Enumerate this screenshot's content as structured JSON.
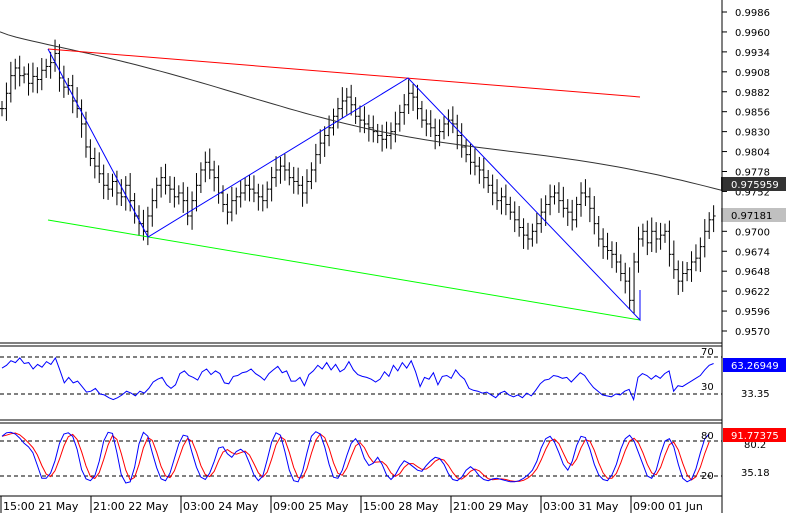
{
  "chart_data": [
    {
      "type": "ohlc",
      "panel": "price",
      "title": "",
      "y_ticks": [
        "0.9986",
        "0.9960",
        "0.9934",
        "0.9908",
        "0.9882",
        "0.9856",
        "0.9830",
        "0.9804",
        "0.9778",
        "0.9752",
        "0.9726",
        "0.9700",
        "0.9674",
        "0.9648",
        "0.9622",
        "0.9596",
        "0.9570"
      ],
      "ylim": [
        0.9553,
        1.0
      ],
      "current_price_label": "0.97181",
      "moving_average_label": "0.975959",
      "colors": {
        "bars": "#000000",
        "moving_average": "#333333",
        "resistance": "#ff0000",
        "support": "#00ff00",
        "zigzag": "#0000ff",
        "ma_box": "#333333",
        "price_box": "#c0c0c0"
      },
      "closes": [
        0.986,
        0.988,
        0.9903,
        0.9913,
        0.9903,
        0.9905,
        0.9893,
        0.9902,
        0.9898,
        0.991,
        0.9915,
        0.992,
        0.9932,
        0.99,
        0.9888,
        0.989,
        0.987,
        0.986,
        0.984,
        0.981,
        0.9795,
        0.9785,
        0.9775,
        0.976,
        0.9755,
        0.9765,
        0.975,
        0.9745,
        0.976,
        0.974,
        0.972,
        0.971,
        0.97,
        0.972,
        0.974,
        0.976,
        0.977,
        0.976,
        0.9755,
        0.9745,
        0.975,
        0.974,
        0.972,
        0.974,
        0.976,
        0.978,
        0.979,
        0.978,
        0.977,
        0.975,
        0.9735,
        0.9725,
        0.974,
        0.9745,
        0.975,
        0.976,
        0.9755,
        0.975,
        0.9745,
        0.974,
        0.9755,
        0.977,
        0.978,
        0.9785,
        0.978,
        0.977,
        0.9765,
        0.976,
        0.975,
        0.9765,
        0.978,
        0.98,
        0.9815,
        0.9825,
        0.9835,
        0.985,
        0.986,
        0.987,
        0.9875,
        0.9865,
        0.985,
        0.9845,
        0.984,
        0.9835,
        0.983,
        0.9825,
        0.982,
        0.9825,
        0.983,
        0.984,
        0.9855,
        0.9865,
        0.988,
        0.9875,
        0.986,
        0.9845,
        0.984,
        0.9835,
        0.9825,
        0.983,
        0.984,
        0.9845,
        0.984,
        0.9825,
        0.981,
        0.98,
        0.979,
        0.9785,
        0.978,
        0.977,
        0.976,
        0.975,
        0.974,
        0.9745,
        0.9735,
        0.9725,
        0.9715,
        0.9705,
        0.9695,
        0.969,
        0.97,
        0.971,
        0.9725,
        0.9735,
        0.9745,
        0.975,
        0.974,
        0.973,
        0.9725,
        0.9715,
        0.9735,
        0.975,
        0.9745,
        0.973,
        0.971,
        0.969,
        0.968,
        0.9675,
        0.967,
        0.966,
        0.9645,
        0.9635,
        0.961,
        0.966,
        0.969,
        0.97,
        0.9685,
        0.97,
        0.969,
        0.9695,
        0.97,
        0.967,
        0.965,
        0.9635,
        0.9645,
        0.965,
        0.966,
        0.9665,
        0.968,
        0.97,
        0.9715,
        0.972
      ]
    },
    {
      "type": "line",
      "panel": "rsi",
      "y_ticks": [
        "70",
        "30"
      ],
      "level_labels": [
        "33.35"
      ],
      "ylim": [
        0,
        100
      ],
      "current_value_label": "63.26949",
      "colors": {
        "line": "#0000ff",
        "value_box": "#0000ff"
      },
      "values": [
        58,
        61,
        66,
        64,
        69,
        63,
        64,
        57,
        62,
        59,
        65,
        62,
        69,
        56,
        42,
        48,
        42,
        44,
        38,
        32,
        33,
        36,
        30,
        29,
        26,
        24,
        26,
        29,
        33,
        31,
        28,
        33,
        31,
        36,
        43,
        46,
        48,
        40,
        36,
        40,
        52,
        55,
        50,
        48,
        45,
        54,
        57,
        51,
        55,
        52,
        42,
        41,
        49,
        50,
        53,
        54,
        57,
        52,
        49,
        45,
        52,
        56,
        60,
        53,
        55,
        44,
        44,
        48,
        39,
        51,
        55,
        61,
        57,
        64,
        56,
        62,
        54,
        57,
        65,
        56,
        51,
        49,
        48,
        46,
        43,
        46,
        54,
        49,
        61,
        55,
        64,
        58,
        66,
        54,
        38,
        48,
        46,
        53,
        40,
        49,
        50,
        47,
        56,
        50,
        46,
        36,
        34,
        33,
        31,
        32,
        29,
        26,
        31,
        33,
        29,
        27,
        29,
        26,
        31,
        28,
        34,
        41,
        45,
        46,
        50,
        49,
        47,
        48,
        43,
        48,
        53,
        50,
        43,
        37,
        33,
        29,
        28,
        27,
        30,
        29,
        33,
        35,
        24,
        48,
        52,
        50,
        46,
        50,
        47,
        52,
        55,
        33,
        39,
        38,
        41,
        44,
        47,
        50,
        56,
        61,
        63
      ]
    },
    {
      "type": "line",
      "panel": "stochastic",
      "y_ticks": [
        "80",
        "20"
      ],
      "level_labels": [
        "80.2",
        "35.18"
      ],
      "ylim": [
        0,
        100
      ],
      "current_value_label": "91.77375",
      "colors": {
        "main": "#0000ff",
        "signal": "#ff0000",
        "value_box": "#ff0000"
      },
      "k_values": [
        88,
        94,
        95,
        92,
        85,
        76,
        70,
        60,
        38,
        16,
        16,
        25,
        46,
        76,
        92,
        94,
        88,
        66,
        31,
        15,
        12,
        20,
        45,
        80,
        95,
        93,
        60,
        22,
        8,
        10,
        35,
        75,
        95,
        88,
        60,
        34,
        15,
        12,
        25,
        50,
        75,
        90,
        88,
        60,
        35,
        18,
        14,
        25,
        45,
        68,
        70,
        58,
        52,
        62,
        66,
        60,
        42,
        22,
        12,
        20,
        48,
        78,
        94,
        90,
        62,
        30,
        12,
        10,
        28,
        60,
        88,
        96,
        92,
        70,
        40,
        18,
        16,
        30,
        55,
        76,
        84,
        72,
        50,
        38,
        42,
        52,
        40,
        22,
        14,
        22,
        36,
        46,
        42,
        36,
        30,
        28,
        38,
        46,
        52,
        50,
        40,
        24,
        14,
        12,
        18,
        30,
        36,
        30,
        20,
        14,
        12,
        15,
        16,
        14,
        12,
        10,
        10,
        12,
        16,
        22,
        30,
        45,
        68,
        84,
        88,
        78,
        60,
        40,
        30,
        45,
        72,
        88,
        86,
        66,
        40,
        22,
        14,
        12,
        22,
        40,
        66,
        84,
        90,
        80,
        60,
        40,
        20,
        16,
        30,
        58,
        80,
        84,
        70,
        40,
        16,
        10,
        14,
        32,
        60,
        84,
        92
      ]
    }
  ],
  "x_axis": {
    "labels": [
      "15:00 21 May",
      "21:00 22 May",
      "03:00 24 May",
      "09:00 25 May",
      "15:00 28 May",
      "21:00 29 May",
      "03:00 31 May",
      "09:00 01 Jun"
    ]
  }
}
